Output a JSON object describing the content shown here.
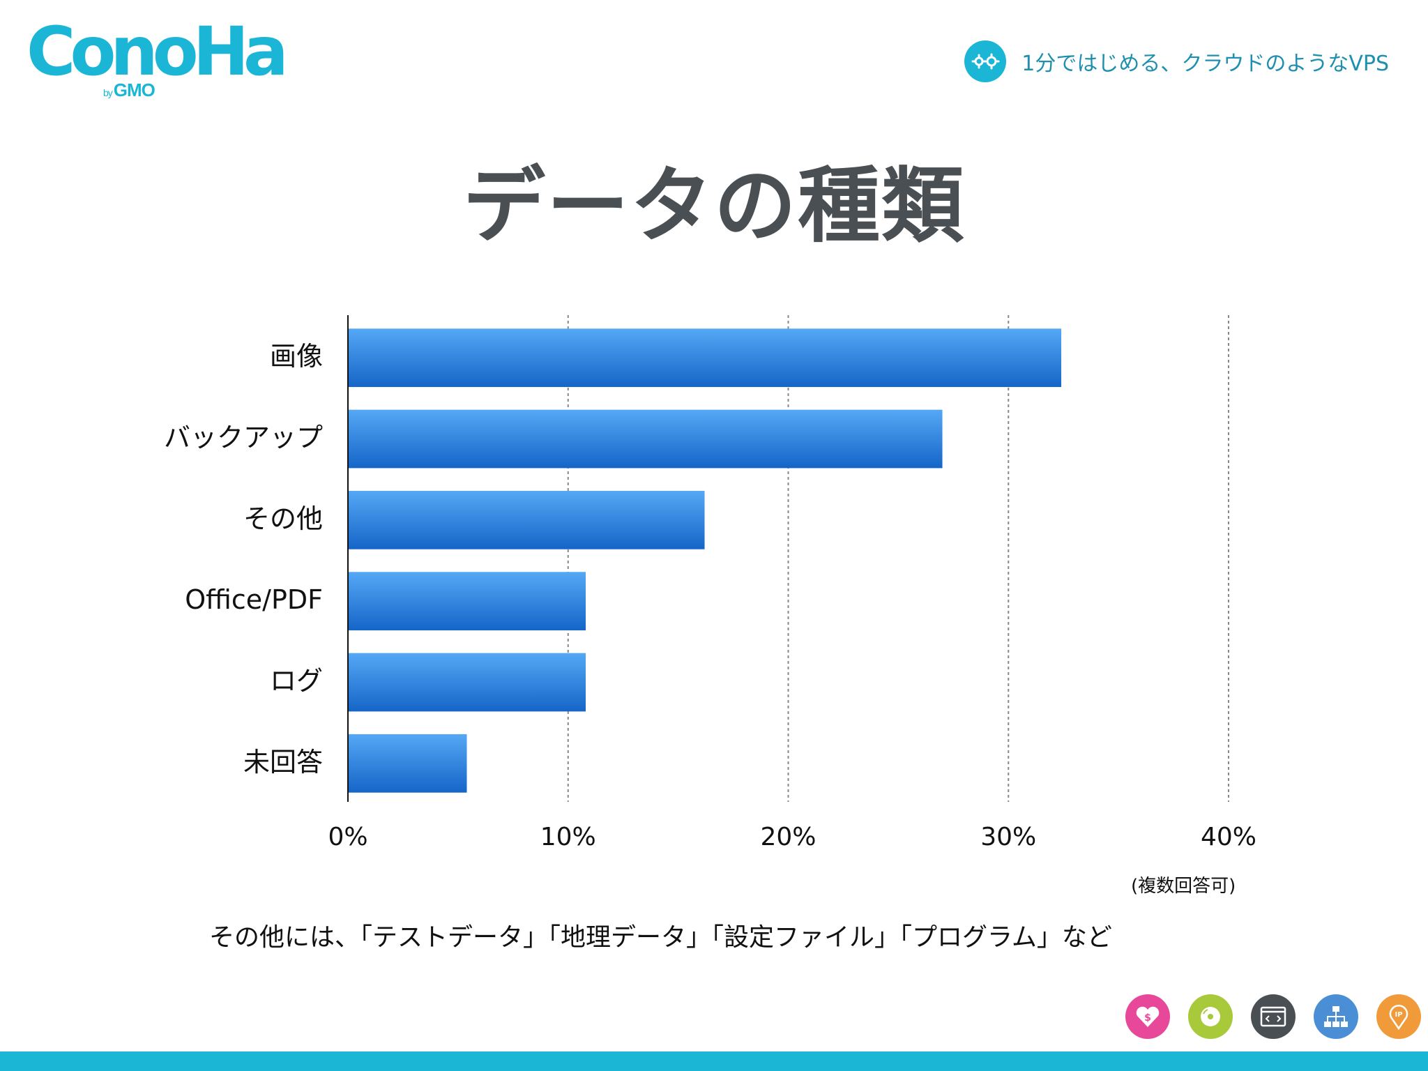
{
  "brand": {
    "logo_main": "ConoHa",
    "logo_by": "by",
    "logo_company": "GMO"
  },
  "header": {
    "tagline": "1分ではじめる、クラウドのようなVPS"
  },
  "slide": {
    "title": "データの種類",
    "note": "その他には、「テストデータ」「地理データ」「設定ファイル」「プログラム」など",
    "footnote": "(複数回答可)"
  },
  "colors": {
    "brand": "#1bb6d6",
    "bar_top": "#55a8f5",
    "bar_bottom": "#1565c8",
    "title": "#4a4f54",
    "footer_icons": [
      "#e8489a",
      "#a8c93a",
      "#4a4f54",
      "#4a8fd6",
      "#f09a3a"
    ]
  },
  "footer_icons": [
    "heart-dollar-icon",
    "disc-icon",
    "code-window-icon",
    "network-icon",
    "ip-location-icon"
  ],
  "chart_data": {
    "type": "bar",
    "orientation": "horizontal",
    "categories": [
      "画像",
      "バックアップ",
      "その他",
      "Office/PDF",
      "ログ",
      "未回答"
    ],
    "values": [
      32.4,
      27.0,
      16.2,
      10.8,
      10.8,
      5.4
    ],
    "unit": "%",
    "xlim": [
      0,
      40
    ],
    "xticks": [
      0,
      10,
      20,
      30,
      40
    ],
    "xtick_labels": [
      "0%",
      "10%",
      "20%",
      "30%",
      "40%"
    ],
    "grid": "vertical-dashed",
    "legend": "none"
  }
}
